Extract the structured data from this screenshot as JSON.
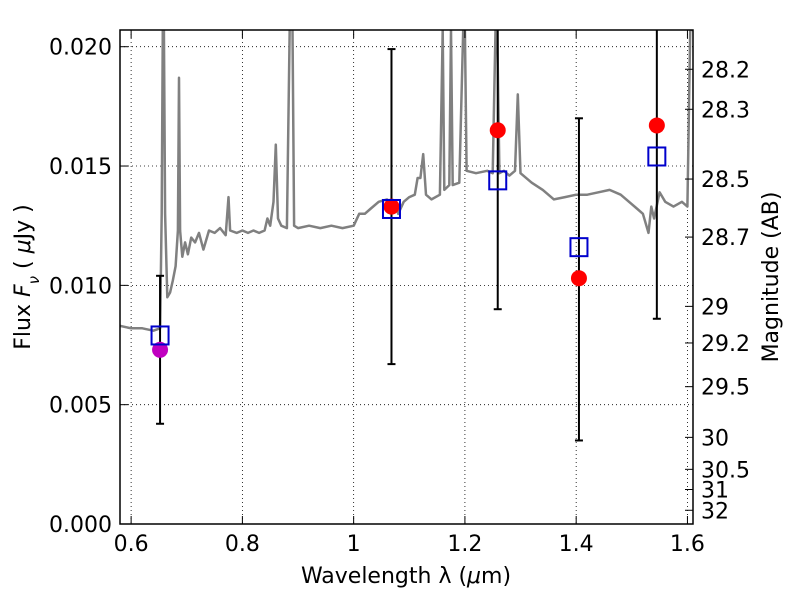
{
  "chart_data": {
    "type": "scatter",
    "title": "",
    "xlabel_text": "Wavelength  λ (",
    "xlabel_mu": "μ",
    "xlabel_unit": "m)",
    "ylabel_text": "Flux  ",
    "ylabel_F": "F",
    "ylabel_nu": "ν",
    "ylabel_paren_open": "  ( ",
    "ylabel_mu": "μ",
    "ylabel_unit": "Jy )",
    "y2label": "Magnitude (AB)",
    "xlim": [
      0.58,
      1.61
    ],
    "ylim": [
      0.0,
      0.0207
    ],
    "grid": true,
    "x_ticks": [
      {
        "value": 0.6,
        "label": "0.6"
      },
      {
        "value": 0.8,
        "label": "0.8"
      },
      {
        "value": 1.0,
        "label": "1"
      },
      {
        "value": 1.2,
        "label": "1.2"
      },
      {
        "value": 1.4,
        "label": "1.4"
      },
      {
        "value": 1.6,
        "label": "1.6"
      }
    ],
    "y_ticks": [
      {
        "value": 0.0,
        "label": "0.000"
      },
      {
        "value": 0.005,
        "label": "0.005"
      },
      {
        "value": 0.01,
        "label": "0.010"
      },
      {
        "value": 0.015,
        "label": "0.015"
      },
      {
        "value": 0.02,
        "label": "0.020"
      }
    ],
    "y2_ticks": [
      {
        "value": 28.2,
        "label": "28.2"
      },
      {
        "value": 28.3,
        "label": "28.3"
      },
      {
        "value": 28.5,
        "label": "28.5"
      },
      {
        "value": 28.7,
        "label": "28.7"
      },
      {
        "value": 29,
        "label": "29"
      },
      {
        "value": 29.2,
        "label": "29.2"
      },
      {
        "value": 29.5,
        "label": "29.5"
      },
      {
        "value": 30,
        "label": "30"
      },
      {
        "value": 30.5,
        "label": "30.5"
      },
      {
        "value": 31,
        "label": "31"
      },
      {
        "value": 32,
        "label": "32"
      }
    ],
    "series": [
      {
        "kind": "line",
        "color": "#808080",
        "points": [
          [
            0.58,
            0.0083
          ],
          [
            0.6,
            0.0082
          ],
          [
            0.62,
            0.0082
          ],
          [
            0.64,
            0.0081
          ],
          [
            0.652,
            0.0082
          ],
          [
            0.655,
            0.013
          ],
          [
            0.657,
            0.0208
          ],
          [
            0.659,
            0.0208
          ],
          [
            0.661,
            0.013
          ],
          [
            0.665,
            0.0095
          ],
          [
            0.67,
            0.0097
          ],
          [
            0.675,
            0.0102
          ],
          [
            0.68,
            0.0108
          ],
          [
            0.684,
            0.0123
          ],
          [
            0.686,
            0.0187
          ],
          [
            0.688,
            0.0123
          ],
          [
            0.692,
            0.0112
          ],
          [
            0.697,
            0.0118
          ],
          [
            0.702,
            0.0113
          ],
          [
            0.708,
            0.012
          ],
          [
            0.715,
            0.0118
          ],
          [
            0.722,
            0.0122
          ],
          [
            0.73,
            0.0115
          ],
          [
            0.74,
            0.0123
          ],
          [
            0.75,
            0.0122
          ],
          [
            0.76,
            0.0124
          ],
          [
            0.77,
            0.0121
          ],
          [
            0.775,
            0.0137
          ],
          [
            0.778,
            0.0123
          ],
          [
            0.79,
            0.0122
          ],
          [
            0.8,
            0.0123
          ],
          [
            0.81,
            0.0122
          ],
          [
            0.82,
            0.0123
          ],
          [
            0.83,
            0.0122
          ],
          [
            0.84,
            0.0123
          ],
          [
            0.845,
            0.0128
          ],
          [
            0.85,
            0.0125
          ],
          [
            0.856,
            0.0135
          ],
          [
            0.86,
            0.0159
          ],
          [
            0.864,
            0.0128
          ],
          [
            0.87,
            0.0125
          ],
          [
            0.88,
            0.0124
          ],
          [
            0.885,
            0.0208
          ],
          [
            0.89,
            0.0208
          ],
          [
            0.893,
            0.0125
          ],
          [
            0.9,
            0.0124
          ],
          [
            0.92,
            0.0125
          ],
          [
            0.94,
            0.0124
          ],
          [
            0.96,
            0.0125
          ],
          [
            0.98,
            0.0124
          ],
          [
            1.0,
            0.0125
          ],
          [
            1.01,
            0.013
          ],
          [
            1.02,
            0.013
          ],
          [
            1.03,
            0.0132
          ],
          [
            1.045,
            0.0135
          ],
          [
            1.06,
            0.0136
          ],
          [
            1.075,
            0.0134
          ],
          [
            1.08,
            0.013
          ],
          [
            1.09,
            0.0135
          ],
          [
            1.1,
            0.0137
          ],
          [
            1.11,
            0.0138
          ],
          [
            1.115,
            0.0145
          ],
          [
            1.12,
            0.0145
          ],
          [
            1.125,
            0.0155
          ],
          [
            1.13,
            0.0138
          ],
          [
            1.14,
            0.0136
          ],
          [
            1.155,
            0.0138
          ],
          [
            1.16,
            0.0207
          ],
          [
            1.163,
            0.014
          ],
          [
            1.172,
            0.0142
          ],
          [
            1.175,
            0.0207
          ],
          [
            1.178,
            0.0142
          ],
          [
            1.19,
            0.0143
          ],
          [
            1.197,
            0.0207
          ],
          [
            1.2,
            0.0207
          ],
          [
            1.203,
            0.0148
          ],
          [
            1.22,
            0.0147
          ],
          [
            1.24,
            0.0148
          ],
          [
            1.25,
            0.0147
          ],
          [
            1.255,
            0.0207
          ],
          [
            1.258,
            0.0207
          ],
          [
            1.262,
            0.0147
          ],
          [
            1.27,
            0.0148
          ],
          [
            1.28,
            0.0146
          ],
          [
            1.29,
            0.0148
          ],
          [
            1.295,
            0.018
          ],
          [
            1.3,
            0.0147
          ],
          [
            1.32,
            0.0143
          ],
          [
            1.34,
            0.014
          ],
          [
            1.36,
            0.0136
          ],
          [
            1.38,
            0.0137
          ],
          [
            1.4,
            0.0138
          ],
          [
            1.42,
            0.0138
          ],
          [
            1.44,
            0.0139
          ],
          [
            1.46,
            0.014
          ],
          [
            1.48,
            0.0138
          ],
          [
            1.5,
            0.0134
          ],
          [
            1.51,
            0.0132
          ],
          [
            1.52,
            0.013
          ],
          [
            1.53,
            0.0122
          ],
          [
            1.535,
            0.0133
          ],
          [
            1.54,
            0.0128
          ],
          [
            1.55,
            0.0139
          ],
          [
            1.56,
            0.0135
          ],
          [
            1.575,
            0.0133
          ],
          [
            1.59,
            0.0135
          ],
          [
            1.6,
            0.0133
          ],
          [
            1.605,
            0.0207
          ],
          [
            1.61,
            0.0207
          ]
        ]
      },
      {
        "kind": "points",
        "marker": "circle",
        "color": "#ff0000",
        "points": [
          [
            1.068,
            0.0133
          ],
          [
            1.259,
            0.0165
          ],
          [
            1.405,
            0.0103
          ],
          [
            1.545,
            0.0167
          ]
        ]
      },
      {
        "kind": "points",
        "marker": "circle",
        "color": "#c000c0",
        "points": [
          [
            0.652,
            0.0073
          ]
        ]
      },
      {
        "kind": "points",
        "marker": "square",
        "color": "#0000cc",
        "points": [
          [
            0.652,
            0.0079
          ],
          [
            1.068,
            0.0132
          ],
          [
            1.259,
            0.0144
          ],
          [
            1.405,
            0.0116
          ],
          [
            1.545,
            0.0154
          ]
        ]
      }
    ],
    "error_bars": [
      {
        "x": 0.652,
        "low": 0.0042,
        "high": 0.0104
      },
      {
        "x": 1.068,
        "low": 0.0067,
        "high": 0.0199
      },
      {
        "x": 1.259,
        "low": 0.009,
        "high": 0.021
      },
      {
        "x": 1.405,
        "low": 0.0035,
        "high": 0.017
      },
      {
        "x": 1.545,
        "low": 0.0086,
        "high": 0.021
      }
    ]
  }
}
